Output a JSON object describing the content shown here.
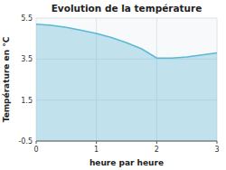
{
  "chart_data": {
    "type": "area",
    "title": "Evolution de la température",
    "xlabel": "heure par heure",
    "ylabel": "Température en °C",
    "x": [
      0,
      0.25,
      0.5,
      0.75,
      1.0,
      1.25,
      1.5,
      1.75,
      2.0,
      2.25,
      2.5,
      2.75,
      3.0
    ],
    "values": [
      5.2,
      5.15,
      5.05,
      4.9,
      4.75,
      4.55,
      4.3,
      4.0,
      3.55,
      3.55,
      3.6,
      3.7,
      3.8
    ],
    "xlim": [
      0,
      3
    ],
    "ylim": [
      -0.5,
      5.5
    ],
    "xticks": [
      0,
      1,
      2,
      3
    ],
    "yticks": [
      -0.5,
      1.5,
      3.5,
      5.5
    ],
    "color": "#5bb8d4",
    "grid": true
  }
}
